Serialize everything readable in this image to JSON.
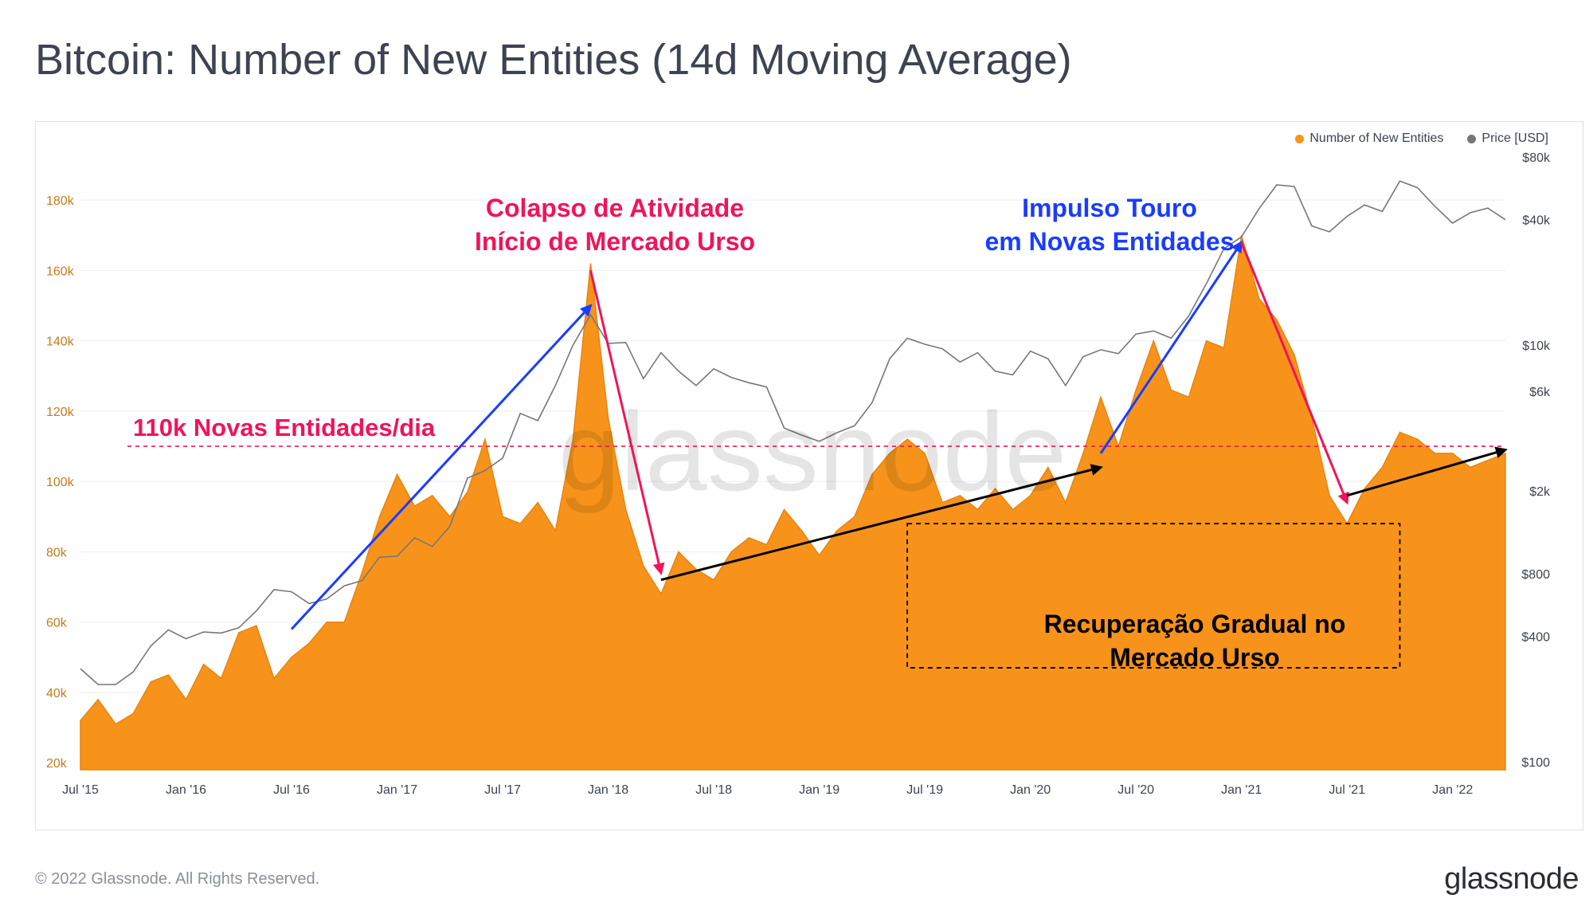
{
  "header": {
    "title": "Bitcoin: Number of New Entities (14d Moving Average)"
  },
  "footer": {
    "copyright": "© 2022 Glassnode. All Rights Reserved.",
    "logo": "glassnode"
  },
  "colors": {
    "entities": "#f7931a",
    "price": "#777777",
    "red": "#f0145a",
    "blue": "#1a3cff",
    "black": "#000000",
    "text": "#3d4350"
  },
  "chart_data": {
    "type": "area",
    "title": "Bitcoin: Number of New Entities (14d Moving Average)",
    "x_ticks": [
      "Jul '15",
      "Jan '16",
      "Jul '16",
      "Jan '17",
      "Jul '17",
      "Jan '18",
      "Jul '18",
      "Jan '19",
      "Jul '19",
      "Jan '20",
      "Jul '20",
      "Jan '21",
      "Jul '21",
      "Jan '22"
    ],
    "x_range": [
      "2015-07",
      "2022-04"
    ],
    "y_left": {
      "ticks": [
        "20k",
        "40k",
        "60k",
        "80k",
        "100k",
        "120k",
        "140k",
        "160k",
        "180k"
      ],
      "values": [
        20000,
        40000,
        60000,
        80000,
        100000,
        120000,
        140000,
        160000,
        180000
      ],
      "range": [
        18000,
        195000
      ]
    },
    "y_right": {
      "scale": "log",
      "ticks": [
        "$100",
        "$400",
        "$800",
        "$2k",
        "$6k",
        "$10k",
        "$40k",
        "$80k"
      ],
      "values": [
        100,
        400,
        800,
        2000,
        6000,
        10000,
        40000,
        80000
      ]
    },
    "legend_position": "top-right",
    "grid": true,
    "series": [
      {
        "name": "Number of New Entities",
        "axis": "left",
        "points": [
          [
            "2015-07",
            32000
          ],
          [
            "2015-08",
            38000
          ],
          [
            "2015-09",
            31000
          ],
          [
            "2015-10",
            34000
          ],
          [
            "2015-11",
            43000
          ],
          [
            "2015-12",
            45000
          ],
          [
            "2016-01",
            38000
          ],
          [
            "2016-02",
            48000
          ],
          [
            "2016-03",
            44000
          ],
          [
            "2016-04",
            57000
          ],
          [
            "2016-05",
            59000
          ],
          [
            "2016-06",
            44000
          ],
          [
            "2016-07",
            50000
          ],
          [
            "2016-08",
            54000
          ],
          [
            "2016-09",
            60000
          ],
          [
            "2016-10",
            60000
          ],
          [
            "2016-11",
            74000
          ],
          [
            "2016-12",
            90000
          ],
          [
            "2017-01",
            102000
          ],
          [
            "2017-02",
            93000
          ],
          [
            "2017-03",
            96000
          ],
          [
            "2017-04",
            90000
          ],
          [
            "2017-05",
            97000
          ],
          [
            "2017-06",
            112000
          ],
          [
            "2017-07",
            90000
          ],
          [
            "2017-08",
            88000
          ],
          [
            "2017-09",
            94000
          ],
          [
            "2017-10",
            86000
          ],
          [
            "2017-11",
            112000
          ],
          [
            "2017-12",
            162000
          ],
          [
            "2018-01",
            118000
          ],
          [
            "2018-02",
            92000
          ],
          [
            "2018-03",
            76000
          ],
          [
            "2018-04",
            68000
          ],
          [
            "2018-05",
            80000
          ],
          [
            "2018-06",
            75000
          ],
          [
            "2018-07",
            72000
          ],
          [
            "2018-08",
            80000
          ],
          [
            "2018-09",
            84000
          ],
          [
            "2018-10",
            82000
          ],
          [
            "2018-11",
            92000
          ],
          [
            "2018-12",
            86000
          ],
          [
            "2019-01",
            79000
          ],
          [
            "2019-02",
            86000
          ],
          [
            "2019-03",
            90000
          ],
          [
            "2019-04",
            102000
          ],
          [
            "2019-05",
            108000
          ],
          [
            "2019-06",
            112000
          ],
          [
            "2019-07",
            108000
          ],
          [
            "2019-08",
            94000
          ],
          [
            "2019-09",
            96000
          ],
          [
            "2019-10",
            92000
          ],
          [
            "2019-11",
            98000
          ],
          [
            "2019-12",
            92000
          ],
          [
            "2020-01",
            96000
          ],
          [
            "2020-02",
            104000
          ],
          [
            "2020-03",
            94000
          ],
          [
            "2020-04",
            108000
          ],
          [
            "2020-05",
            124000
          ],
          [
            "2020-06",
            110000
          ],
          [
            "2020-07",
            126000
          ],
          [
            "2020-08",
            140000
          ],
          [
            "2020-09",
            126000
          ],
          [
            "2020-10",
            124000
          ],
          [
            "2020-11",
            140000
          ],
          [
            "2020-12",
            138000
          ],
          [
            "2021-01",
            170000
          ],
          [
            "2021-02",
            152000
          ],
          [
            "2021-03",
            146000
          ],
          [
            "2021-04",
            136000
          ],
          [
            "2021-05",
            118000
          ],
          [
            "2021-06",
            96000
          ],
          [
            "2021-07",
            88000
          ],
          [
            "2021-08",
            98000
          ],
          [
            "2021-09",
            104000
          ],
          [
            "2021-10",
            114000
          ],
          [
            "2021-11",
            112000
          ],
          [
            "2021-12",
            108000
          ],
          [
            "2022-01",
            108000
          ],
          [
            "2022-02",
            104000
          ],
          [
            "2022-03",
            106000
          ],
          [
            "2022-04",
            108000
          ]
        ]
      },
      {
        "name": "Price [USD]",
        "axis": "right",
        "points": [
          [
            "2015-07",
            280
          ],
          [
            "2015-08",
            235
          ],
          [
            "2015-09",
            235
          ],
          [
            "2015-10",
            270
          ],
          [
            "2015-11",
            360
          ],
          [
            "2015-12",
            430
          ],
          [
            "2016-01",
            390
          ],
          [
            "2016-02",
            420
          ],
          [
            "2016-03",
            415
          ],
          [
            "2016-04",
            440
          ],
          [
            "2016-05",
            530
          ],
          [
            "2016-06",
            670
          ],
          [
            "2016-07",
            655
          ],
          [
            "2016-08",
            575
          ],
          [
            "2016-09",
            605
          ],
          [
            "2016-10",
            700
          ],
          [
            "2016-11",
            740
          ],
          [
            "2016-12",
            960
          ],
          [
            "2017-01",
            970
          ],
          [
            "2017-02",
            1190
          ],
          [
            "2017-03",
            1080
          ],
          [
            "2017-04",
            1350
          ],
          [
            "2017-05",
            2300
          ],
          [
            "2017-06",
            2500
          ],
          [
            "2017-07",
            2870
          ],
          [
            "2017-08",
            4700
          ],
          [
            "2017-09",
            4340
          ],
          [
            "2017-10",
            6400
          ],
          [
            "2017-11",
            10000
          ],
          [
            "2017-12",
            14000
          ],
          [
            "2018-01",
            10200
          ],
          [
            "2018-02",
            10300
          ],
          [
            "2018-03",
            6900
          ],
          [
            "2018-04",
            9200
          ],
          [
            "2018-05",
            7500
          ],
          [
            "2018-06",
            6400
          ],
          [
            "2018-07",
            7700
          ],
          [
            "2018-08",
            7000
          ],
          [
            "2018-09",
            6600
          ],
          [
            "2018-10",
            6300
          ],
          [
            "2018-11",
            4000
          ],
          [
            "2018-12",
            3700
          ],
          [
            "2019-01",
            3450
          ],
          [
            "2019-02",
            3800
          ],
          [
            "2019-03",
            4100
          ],
          [
            "2019-04",
            5300
          ],
          [
            "2019-05",
            8600
          ],
          [
            "2019-06",
            10800
          ],
          [
            "2019-07",
            10100
          ],
          [
            "2019-08",
            9600
          ],
          [
            "2019-09",
            8300
          ],
          [
            "2019-10",
            9200
          ],
          [
            "2019-11",
            7500
          ],
          [
            "2019-12",
            7200
          ],
          [
            "2020-01",
            9350
          ],
          [
            "2020-02",
            8600
          ],
          [
            "2020-03",
            6400
          ],
          [
            "2020-04",
            8800
          ],
          [
            "2020-05",
            9500
          ],
          [
            "2020-06",
            9100
          ],
          [
            "2020-07",
            11300
          ],
          [
            "2020-08",
            11700
          ],
          [
            "2020-09",
            10800
          ],
          [
            "2020-10",
            13800
          ],
          [
            "2020-11",
            19700
          ],
          [
            "2020-12",
            29000
          ],
          [
            "2021-01",
            33100
          ],
          [
            "2021-02",
            45200
          ],
          [
            "2021-03",
            58800
          ],
          [
            "2021-04",
            57700
          ],
          [
            "2021-05",
            37300
          ],
          [
            "2021-06",
            35000
          ],
          [
            "2021-07",
            41500
          ],
          [
            "2021-08",
            47100
          ],
          [
            "2021-09",
            43800
          ],
          [
            "2021-10",
            61300
          ],
          [
            "2021-11",
            57000
          ],
          [
            "2021-12",
            46300
          ],
          [
            "2022-01",
            38500
          ],
          [
            "2022-02",
            43200
          ],
          [
            "2022-03",
            45500
          ],
          [
            "2022-04",
            40000
          ]
        ]
      }
    ],
    "reference_line": {
      "value": 110000,
      "label": "110k Novas Entidades/dia"
    },
    "annotations": [
      {
        "id": "collapse",
        "lines": [
          "Colapso de Atividade",
          "Início de Mercado Urso"
        ],
        "color": "red"
      },
      {
        "id": "bull",
        "lines": [
          "Impulso Touro",
          "em Novas Entidades"
        ],
        "color": "blue"
      },
      {
        "id": "recovery",
        "lines": [
          "Recuperação Gradual no",
          "Mercado Urso"
        ],
        "color": "black"
      }
    ],
    "trend_arrows": [
      {
        "color": "blue",
        "from": [
          "2016-07",
          58000
        ],
        "to": [
          "2017-12",
          150000
        ]
      },
      {
        "color": "red",
        "from": [
          "2017-12",
          160000
        ],
        "to": [
          "2018-04",
          74000
        ]
      },
      {
        "color": "black",
        "from": [
          "2018-04",
          72000
        ],
        "to": [
          "2020-05",
          104000
        ]
      },
      {
        "color": "blue",
        "from": [
          "2020-05",
          108000
        ],
        "to": [
          "2021-01",
          168000
        ]
      },
      {
        "color": "red",
        "from": [
          "2021-01",
          168000
        ],
        "to": [
          "2021-07",
          94000
        ]
      },
      {
        "color": "black",
        "from": [
          "2021-07",
          96000
        ],
        "to": [
          "2022-04",
          109000
        ]
      }
    ],
    "recovery_box": {
      "from": [
        "2019-06",
        88000
      ],
      "to": [
        "2021-10",
        47000
      ]
    },
    "watermark": "glassnode"
  }
}
